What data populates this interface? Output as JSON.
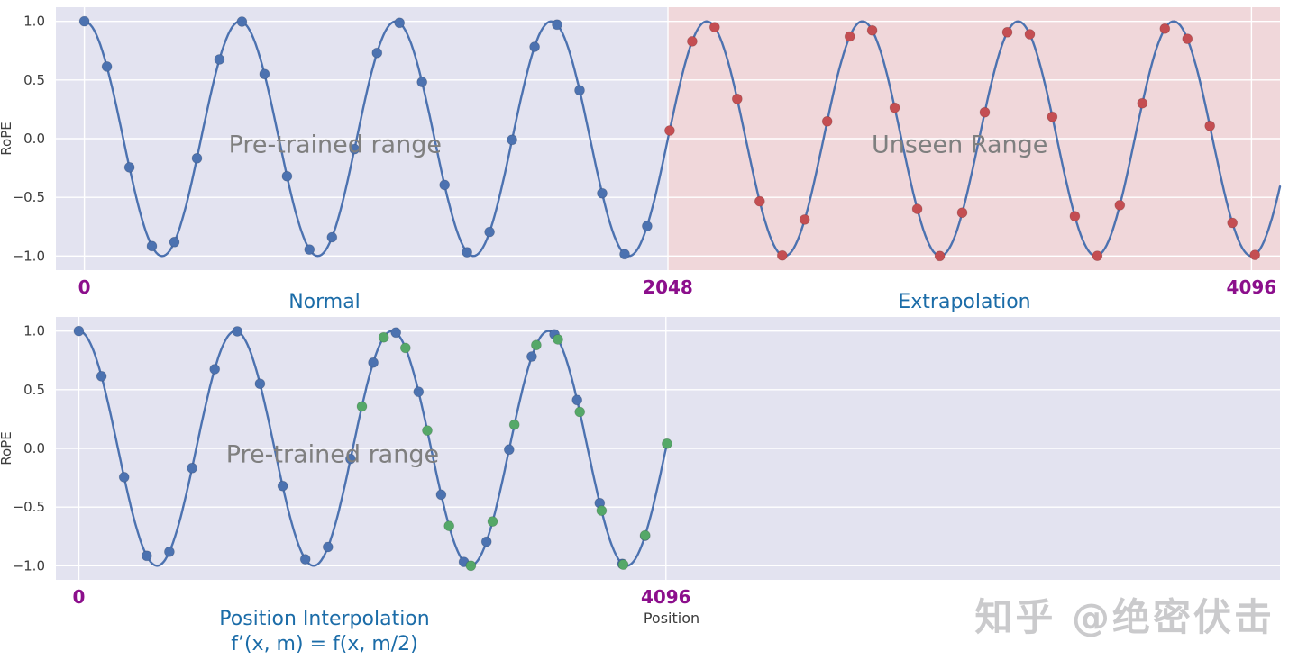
{
  "watermark": "知乎 @绝密伏击",
  "colors": {
    "curve": "#4c72b0",
    "dot_blue": "#4c72b0",
    "dot_red": "#c44e52",
    "dot_green": "#55a868",
    "bg_pretrained": "#e3e3f0",
    "bg_unseen": "#f0d7da",
    "grid": "#ffffff",
    "tick_purple": "#8c0f8c",
    "caption_blue": "#1b6ca8",
    "annotation_gray": "#7f7f7f",
    "axis_text": "#3d3d3d"
  },
  "chart_data": [
    {
      "type": "line",
      "title": "",
      "ylabel": "RoPE",
      "xlim": [
        -100,
        4196
      ],
      "ylim": [
        -1.12,
        1.12
      ],
      "yticks": [
        {
          "value": 1.0,
          "label": "1.0"
        },
        {
          "value": 0.5,
          "label": "0.5"
        },
        {
          "value": 0.0,
          "label": "0.0"
        },
        {
          "value": -0.5,
          "label": "−0.5"
        },
        {
          "value": -1.0,
          "label": "−1.0"
        }
      ],
      "xticks": [
        {
          "value": 0,
          "label": "0"
        },
        {
          "value": 2048,
          "label": "2048"
        },
        {
          "value": 4096,
          "label": "4096"
        }
      ],
      "curve": {
        "description": "y = cos(2*pi*x/546.13), 7.5 cycles over positions 0-4096",
        "period": 546.133,
        "amplitude": 1,
        "x_start": 0,
        "x_end": 4196,
        "color_key": "curve"
      },
      "regions": [
        {
          "name": "pre-trained-range",
          "x0": 0,
          "x1": 2048,
          "extend_left": true,
          "color_key": "bg_pretrained"
        },
        {
          "name": "unseen-range",
          "x0": 2048,
          "x1": 4096,
          "extend_right": true,
          "color_key": "bg_unseen"
        }
      ],
      "dots": [
        {
          "name": "pre-trained-positions",
          "color_key": "dot_blue",
          "x_start": 0,
          "x_end": 2048,
          "step": 79
        },
        {
          "name": "extrapolated-positions",
          "color_key": "dot_red",
          "x_start": 2054,
          "x_end": 4120,
          "step": 79
        }
      ],
      "annotations": [
        {
          "text": "Pre-trained range",
          "x": 880,
          "y": -0.06
        },
        {
          "text": "Unseen Range",
          "x": 3072,
          "y": -0.06
        }
      ],
      "captions": [
        "Normal",
        "Extrapolation"
      ]
    },
    {
      "type": "line",
      "title": "",
      "ylabel": "RoPE",
      "xlabel": "Position",
      "xlim": [
        -160,
        8380
      ],
      "ylim": [
        -1.12,
        1.12
      ],
      "yticks": [
        {
          "value": 1.0,
          "label": "1.0"
        },
        {
          "value": 0.5,
          "label": "0.5"
        },
        {
          "value": 0.0,
          "label": "0.0"
        },
        {
          "value": -0.5,
          "label": "−0.5"
        },
        {
          "value": -1.0,
          "label": "−1.0"
        }
      ],
      "xticks": [
        {
          "value": 0,
          "label": "0"
        },
        {
          "value": 4096,
          "label": "4096"
        }
      ],
      "curve": {
        "description": "position interpolation: same wave squeezed to half width, y = cos(2*pi*x/1092.27)",
        "period": 1092.267,
        "amplitude": 1,
        "x_start": 0,
        "x_end": 4108,
        "color_key": "curve"
      },
      "background_color_key": "bg_pretrained",
      "regions": [],
      "dots": [
        {
          "name": "integer-positions",
          "color_key": "dot_blue",
          "x_start": 0,
          "x_end": 4096,
          "step": 158
        },
        {
          "name": "interpolated-positions",
          "color_key": "dot_green",
          "x_start": 1975,
          "x_end": 4110,
          "step": 152
        }
      ],
      "annotations": [
        {
          "text": "Pre-trained range",
          "x": 1770,
          "y": -0.06
        }
      ],
      "captions": [
        "Position Interpolation",
        "f’(x, m) = f(x, m/2)"
      ]
    }
  ]
}
